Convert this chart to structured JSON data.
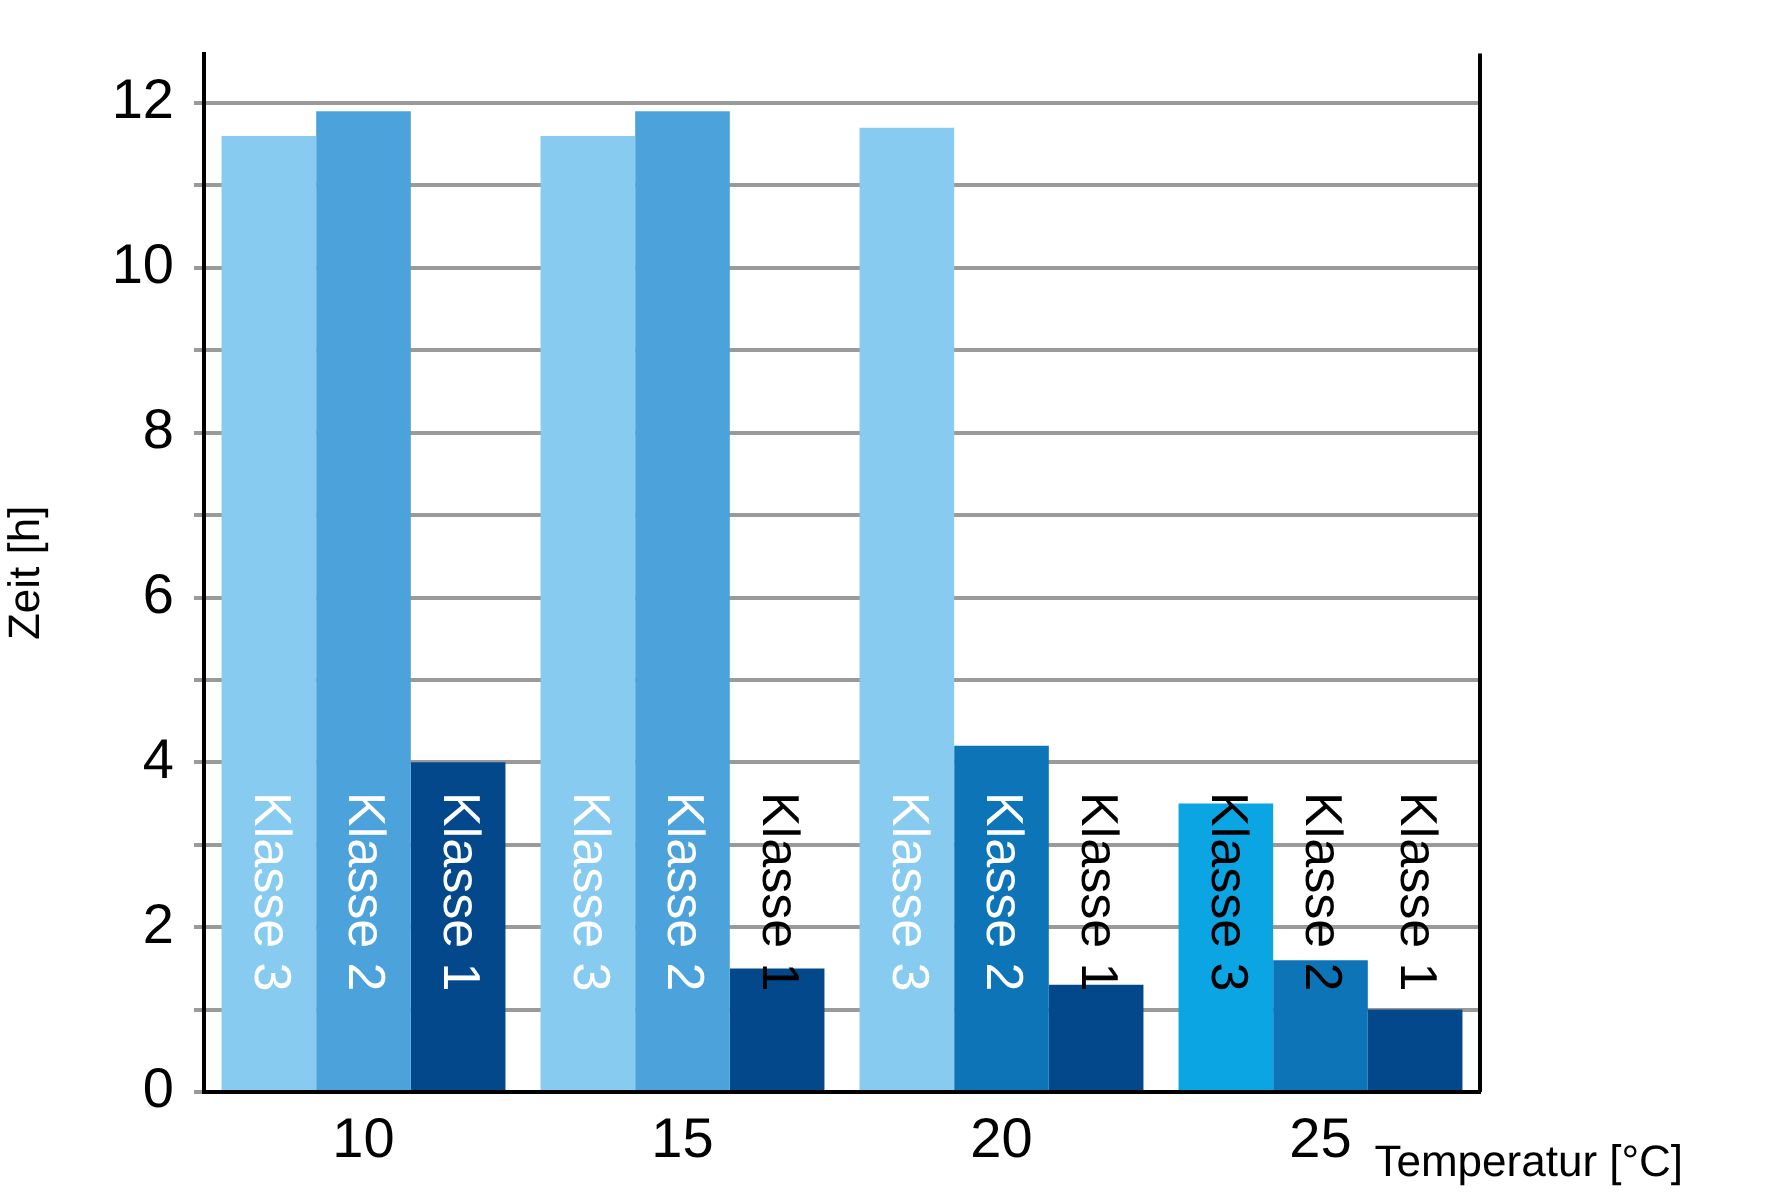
{
  "chart_data": {
    "type": "bar",
    "xlabel": "Temperatur [°C]",
    "ylabel": "Zeit [h]",
    "categories": [
      "10",
      "15",
      "20",
      "25"
    ],
    "series": [
      {
        "name": "Klasse 3",
        "colors": [
          "#88cbf0",
          "#88cbf0",
          "#88cbf0",
          "#0aa5e2"
        ],
        "values": [
          11.6,
          11.6,
          11.7,
          3.5
        ]
      },
      {
        "name": "Klasse 2",
        "colors": [
          "#4ca3dc",
          "#4ca3dc",
          "#0e74b8",
          "#0e74b8"
        ],
        "values": [
          11.9,
          11.9,
          4.2,
          1.6
        ]
      },
      {
        "name": "Klasse 1",
        "colors": [
          "#04488c",
          "#04488c",
          "#04488c",
          "#04488c"
        ],
        "values": [
          4.0,
          1.5,
          1.3,
          1.0
        ]
      }
    ],
    "ylim": [
      0,
      12.6
    ],
    "yticks": [
      0,
      {
        "value": 1,
        "label": null
      },
      2,
      {
        "value": 3,
        "label": null
      },
      4,
      {
        "value": 5,
        "label": null
      },
      6,
      {
        "value": 7,
        "label": null
      },
      8,
      {
        "value": 9,
        "label": null
      },
      10,
      {
        "value": 11,
        "label": null
      },
      12
    ],
    "grid": "y",
    "legend": false
  }
}
